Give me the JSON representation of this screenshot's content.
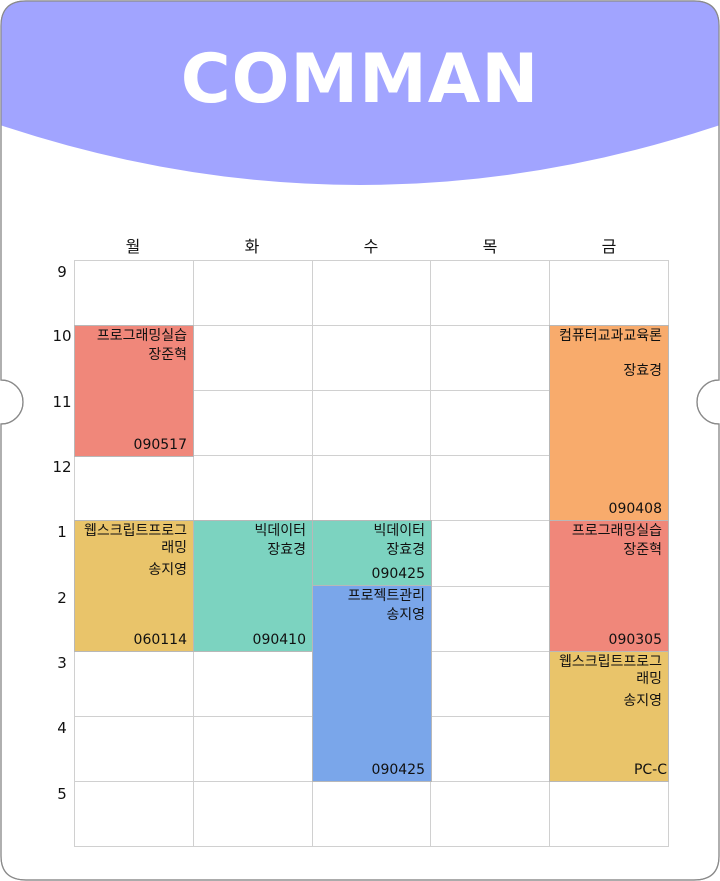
{
  "header": {
    "title": "COMMAN"
  },
  "colors": {
    "header": "#a1a4ff",
    "red": "#f0877a",
    "orange": "#f8ab6c",
    "yellow": "#e9c46a",
    "teal": "#7cd3c0",
    "blue": "#7aa6ea"
  },
  "days": [
    "월",
    "화",
    "수",
    "목",
    "금"
  ],
  "hours": [
    "9",
    "10",
    "11",
    "12",
    "1",
    "2",
    "3",
    "4",
    "5"
  ],
  "courses": [
    {
      "name": "프로그래밍실습",
      "prof": "장준혁",
      "code": "090517",
      "color": "#f0877a"
    },
    {
      "name": "컴퓨터교과교육론",
      "prof": "장효경",
      "code": "090408",
      "color": "#f8ab6c"
    },
    {
      "name": "웹스크립트프로그래밍",
      "prof": "송지영",
      "code": "060114",
      "color": "#e9c46a"
    },
    {
      "name": "빅데이터",
      "prof": "장효경",
      "code": "090410",
      "color": "#7cd3c0"
    },
    {
      "name": "빅데이터",
      "prof": "장효경",
      "code": "090425",
      "color": "#7cd3c0"
    },
    {
      "name": "프로젝트관리",
      "prof": "송지영",
      "code": "090425",
      "color": "#7aa6ea"
    },
    {
      "name": "프로그래밍실습",
      "prof": "장준혁",
      "code": "090305",
      "color": "#f0877a"
    },
    {
      "name": "웹스크립트프로그래밍",
      "prof": "송지영",
      "code": "PC-C",
      "color": "#e9c46a"
    }
  ]
}
